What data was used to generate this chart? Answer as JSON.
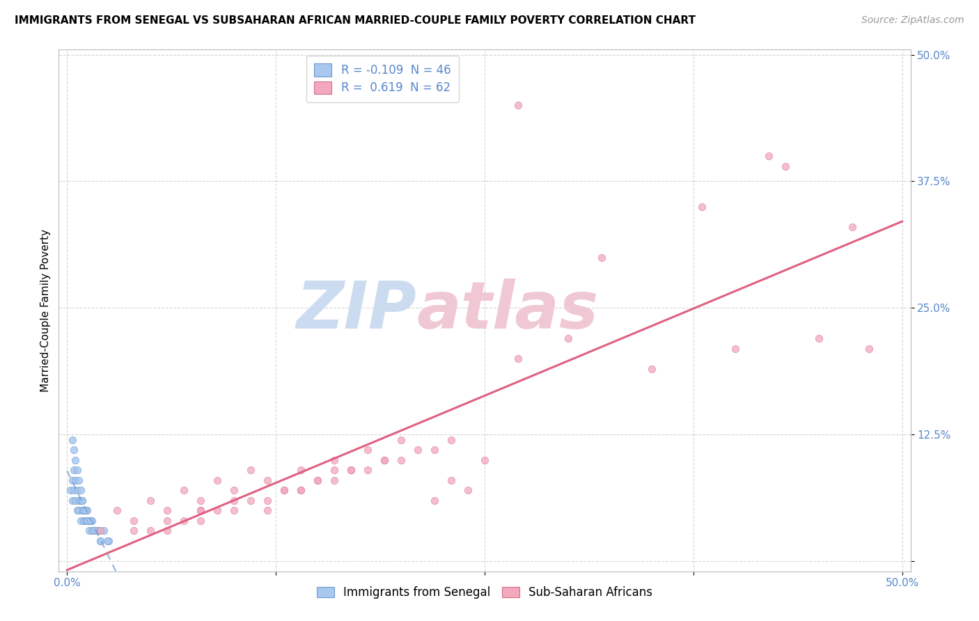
{
  "title": "IMMIGRANTS FROM SENEGAL VS SUBSAHARAN AFRICAN MARRIED-COUPLE FAMILY POVERTY CORRELATION CHART",
  "source": "Source: ZipAtlas.com",
  "ylabel": "Married-Couple Family Poverty",
  "xlabel": "",
  "xlim": [
    -0.005,
    0.505
  ],
  "ylim": [
    -0.01,
    0.505
  ],
  "blue_R": -0.109,
  "blue_N": 46,
  "pink_R": 0.619,
  "pink_N": 62,
  "blue_label": "Immigrants from Senegal",
  "pink_label": "Sub-Saharan Africans",
  "blue_color": "#a8c8f0",
  "pink_color": "#f4a8bc",
  "blue_edge_color": "#7099cc",
  "pink_edge_color": "#d07090",
  "blue_line_color": "#7099cc",
  "pink_line_color": "#e06080",
  "background_color": "#ffffff",
  "grid_color": "#cccccc",
  "tick_color": "#5588cc",
  "title_fontsize": 11,
  "source_fontsize": 10,
  "tick_fontsize": 11,
  "ylabel_fontsize": 11,
  "legend_fontsize": 12,
  "watermark_zip_color": "#ccdcf0",
  "watermark_atlas_color": "#f0c8d4",
  "pink_x": [
    0.02,
    0.03,
    0.04,
    0.05,
    0.06,
    0.07,
    0.08,
    0.09,
    0.1,
    0.11,
    0.12,
    0.13,
    0.14,
    0.15,
    0.16,
    0.17,
    0.18,
    0.19,
    0.2,
    0.21,
    0.22,
    0.23,
    0.24,
    0.25,
    0.08,
    0.1,
    0.12,
    0.14,
    0.16,
    0.18,
    0.2,
    0.22,
    0.05,
    0.07,
    0.09,
    0.11,
    0.13,
    0.15,
    0.17,
    0.19,
    0.23,
    0.06,
    0.08,
    0.1,
    0.12,
    0.14,
    0.16,
    0.04,
    0.06,
    0.08,
    0.27,
    0.3,
    0.35,
    0.4,
    0.45,
    0.48,
    0.32,
    0.38,
    0.43,
    0.47,
    0.27,
    0.42
  ],
  "pink_y": [
    0.03,
    0.05,
    0.04,
    0.06,
    0.05,
    0.07,
    0.06,
    0.08,
    0.07,
    0.09,
    0.08,
    0.07,
    0.09,
    0.08,
    0.1,
    0.09,
    0.11,
    0.1,
    0.12,
    0.11,
    0.06,
    0.08,
    0.07,
    0.1,
    0.04,
    0.05,
    0.06,
    0.07,
    0.08,
    0.09,
    0.1,
    0.11,
    0.03,
    0.04,
    0.05,
    0.06,
    0.07,
    0.08,
    0.09,
    0.1,
    0.12,
    0.03,
    0.05,
    0.06,
    0.05,
    0.07,
    0.09,
    0.03,
    0.04,
    0.05,
    0.2,
    0.22,
    0.19,
    0.21,
    0.22,
    0.21,
    0.3,
    0.35,
    0.39,
    0.33,
    0.45,
    0.4
  ],
  "blue_x": [
    0.002,
    0.003,
    0.003,
    0.004,
    0.004,
    0.005,
    0.005,
    0.006,
    0.006,
    0.007,
    0.007,
    0.008,
    0.008,
    0.009,
    0.009,
    0.01,
    0.01,
    0.011,
    0.011,
    0.012,
    0.012,
    0.013,
    0.013,
    0.014,
    0.015,
    0.015,
    0.016,
    0.018,
    0.02,
    0.022,
    0.025,
    0.003,
    0.004,
    0.005,
    0.006,
    0.007,
    0.008,
    0.009,
    0.01,
    0.011,
    0.012,
    0.014,
    0.016,
    0.018,
    0.02,
    0.024
  ],
  "blue_y": [
    0.07,
    0.08,
    0.06,
    0.07,
    0.09,
    0.06,
    0.08,
    0.05,
    0.07,
    0.06,
    0.05,
    0.06,
    0.04,
    0.05,
    0.06,
    0.04,
    0.05,
    0.04,
    0.05,
    0.04,
    0.05,
    0.04,
    0.03,
    0.04,
    0.03,
    0.04,
    0.03,
    0.03,
    0.02,
    0.03,
    0.02,
    0.12,
    0.11,
    0.1,
    0.09,
    0.08,
    0.07,
    0.06,
    0.05,
    0.05,
    0.04,
    0.04,
    0.03,
    0.03,
    0.02,
    0.02
  ]
}
